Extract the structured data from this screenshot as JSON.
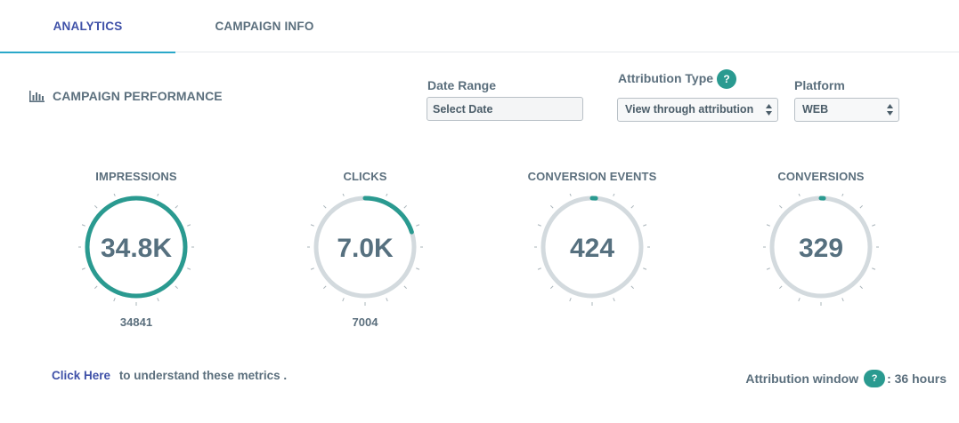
{
  "tabs": [
    {
      "label": "ANALYTICS",
      "active": true
    },
    {
      "label": "CAMPAIGN INFO",
      "active": false
    }
  ],
  "section": {
    "title": "CAMPAIGN PERFORMANCE",
    "icon": "bar-chart-icon"
  },
  "filters": {
    "date_range": {
      "label": "Date Range",
      "placeholder": "Select Date",
      "value": ""
    },
    "attribution_type": {
      "label": "Attribution Type",
      "help": "?",
      "selected": "View through attribution"
    },
    "platform": {
      "label": "Platform",
      "selected": "WEB"
    }
  },
  "metrics": [
    {
      "label": "IMPRESSIONS",
      "display": "34.8K",
      "raw": "34841",
      "progress": 1.0
    },
    {
      "label": "CLICKS",
      "display": "7.0K",
      "raw": "7004",
      "progress": 0.2
    },
    {
      "label": "CONVERSION EVENTS",
      "display": "424",
      "raw": "",
      "progress": 0.012
    },
    {
      "label": "CONVERSIONS",
      "display": "329",
      "raw": "",
      "progress": 0.009
    }
  ],
  "footer": {
    "link_text": "Click Here",
    "link_suffix": "to understand these metrics .",
    "attribution_window_label": "Attribution window",
    "help": "?",
    "attribution_window_value": ": 36 hours"
  },
  "colors": {
    "accent": "#2a9a90",
    "track": "#d3dade",
    "tab_active": "#3f51a8",
    "tab_underline": "#2aa8c9",
    "text": "#5b6f7d"
  }
}
